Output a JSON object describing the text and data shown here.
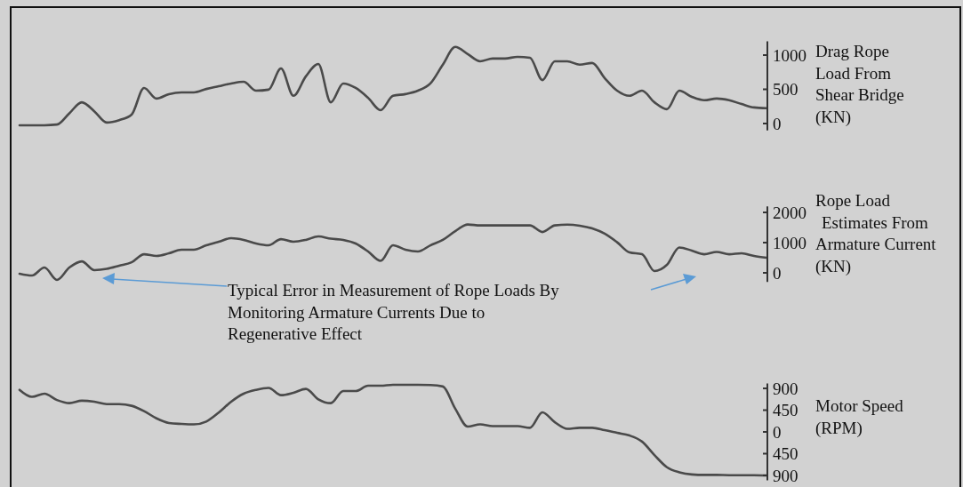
{
  "chart_data": [
    {
      "type": "line",
      "ylabel": "Drag Rope\nLoad From\nShear Bridge\n(KN)",
      "tick_labels": "y",
      "ylim": [
        -100,
        1200
      ],
      "yticks": [
        0,
        500,
        1000
      ],
      "categories": [
        null,
        null,
        null,
        null,
        null,
        null,
        null,
        null,
        null,
        null,
        null,
        null,
        null,
        null,
        null,
        null,
        null,
        null,
        null,
        null,
        null,
        null,
        null,
        null,
        null,
        null,
        null,
        null,
        null,
        null,
        null,
        null,
        null,
        null,
        null,
        null,
        null,
        null,
        null,
        null,
        null,
        null,
        null,
        null,
        null,
        null,
        null,
        null,
        null,
        null,
        null,
        null,
        null,
        null,
        null,
        null,
        null,
        null,
        null,
        null,
        null
      ],
      "series": [
        {
          "color": "#4a4a4a",
          "values": [
            -25,
            -25,
            -25,
            -15,
            150,
            310,
            180,
            15,
            50,
            130,
            520,
            365,
            430,
            455,
            455,
            505,
            545,
            585,
            610,
            480,
            495,
            805,
            405,
            690,
            870,
            310,
            585,
            520,
            375,
            195,
            405,
            430,
            480,
            585,
            860,
            1120,
            1015,
            910,
            950,
            950,
            975,
            960,
            635,
            910,
            910,
            860,
            885,
            665,
            480,
            405,
            480,
            310,
            210,
            480,
            390,
            340,
            365,
            340,
            285,
            235,
            225
          ]
        }
      ]
    },
    {
      "type": "line",
      "ylabel": "Rope Load\nEstimates From\nArmature Current\n(KN)",
      "tick_labels": "y",
      "ylim": [
        -300,
        2200
      ],
      "yticks": [
        0,
        1000,
        2000
      ],
      "categories": [
        null,
        null,
        null,
        null,
        null,
        null,
        null,
        null,
        null,
        null,
        null,
        null,
        null,
        null,
        null,
        null,
        null,
        null,
        null,
        null,
        null,
        null,
        null,
        null,
        null,
        null,
        null,
        null,
        null,
        null,
        null,
        null,
        null,
        null,
        null,
        null,
        null,
        null,
        null,
        null,
        null,
        null,
        null,
        null,
        null,
        null,
        null,
        null,
        null,
        null,
        null,
        null,
        null,
        null,
        null,
        null,
        null,
        null,
        null,
        null,
        null
      ],
      "annotations": [
        "Typical Error in Measurement of Rope Loads By\nMonitoring Armature Currents Due to\nRegenerative Effect"
      ],
      "series": [
        {
          "color": "#4a4a4a",
          "values": [
            -30,
            -90,
            175,
            -235,
            175,
            380,
            90,
            130,
            235,
            350,
            615,
            560,
            645,
            765,
            765,
            910,
            1030,
            1145,
            1090,
            970,
            910,
            1115,
            1030,
            1090,
            1205,
            1130,
            1090,
            970,
            705,
            395,
            910,
            765,
            705,
            910,
            1090,
            1380,
            1600,
            1570,
            1570,
            1570,
            1570,
            1570,
            1350,
            1570,
            1595,
            1560,
            1470,
            1295,
            1010,
            675,
            615,
            60,
            265,
            840,
            735,
            615,
            690,
            615,
            645,
            560,
            500
          ]
        }
      ]
    },
    {
      "type": "line",
      "ylabel": "Motor Speed\n(RPM)",
      "tick_labels": "y",
      "ylim": [
        -1000,
        1000
      ],
      "yticks": [
        900,
        450,
        0,
        {
          "value": -450,
          "label": "450"
        },
        {
          "value": -900,
          "label": "900"
        }
      ],
      "categories": [
        null,
        null,
        null,
        null,
        null,
        null,
        null,
        null,
        null,
        null,
        null,
        null,
        null,
        null,
        null,
        null,
        null,
        null,
        null,
        null,
        null,
        null,
        null,
        null,
        null,
        null,
        null,
        null,
        null,
        null,
        null,
        null,
        null,
        null,
        null,
        null,
        null,
        null,
        null,
        null,
        null,
        null,
        null,
        null,
        null,
        null,
        null,
        null,
        null,
        null,
        null,
        null,
        null,
        null,
        null,
        null,
        null,
        null,
        null,
        null,
        null
      ],
      "series": [
        {
          "color": "#4a4a4a",
          "values": [
            870,
            725,
            790,
            660,
            595,
            645,
            625,
            575,
            575,
            540,
            430,
            280,
            185,
            165,
            155,
            215,
            400,
            625,
            790,
            870,
            910,
            760,
            810,
            890,
            675,
            595,
            845,
            845,
            955,
            955,
            975,
            975,
            975,
            970,
            940,
            480,
            110,
            155,
            120,
            120,
            120,
            85,
            405,
            200,
            65,
            85,
            85,
            35,
            -20,
            -75,
            -200,
            -480,
            -730,
            -835,
            -880,
            -890,
            -890,
            -895,
            -895,
            -895,
            -900
          ]
        }
      ]
    }
  ]
}
